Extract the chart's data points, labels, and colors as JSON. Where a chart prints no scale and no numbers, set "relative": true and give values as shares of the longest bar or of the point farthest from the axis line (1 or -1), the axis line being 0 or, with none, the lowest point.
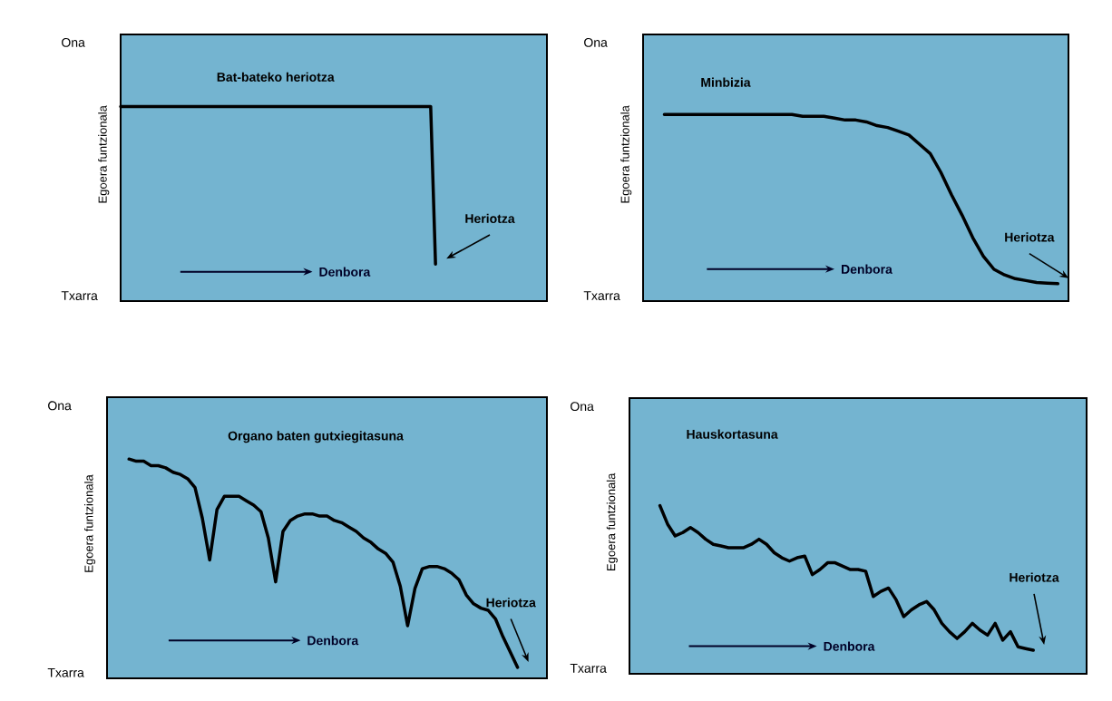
{
  "chart_data": [
    {
      "type": "line",
      "relative": true,
      "title": "Bat-bateko heriotza",
      "ylabel": "Egoera funtzionala",
      "categories": [
        null,
        null,
        null,
        null,
        null,
        null,
        null,
        null,
        null,
        null,
        null,
        null,
        null,
        null,
        null,
        null,
        null,
        null,
        null,
        null,
        null,
        null,
        null,
        null,
        null,
        null,
        null,
        null,
        null,
        null,
        null,
        null,
        null,
        null,
        null,
        null,
        null,
        null,
        null,
        null,
        null,
        null,
        null,
        null,
        null,
        null,
        null,
        null,
        null,
        null,
        null,
        null,
        null,
        null,
        null,
        null,
        null,
        null,
        null,
        null,
        null,
        null,
        null,
        null,
        null,
        null,
        null,
        null,
        null,
        null,
        null,
        null,
        null,
        null,
        null,
        null,
        null,
        null,
        null,
        null,
        null,
        null,
        null,
        null,
        null,
        null,
        null,
        null,
        null
      ],
      "series": [
        {
          "color": "#000000",
          "values": [
            1,
            1,
            1,
            1,
            1,
            1,
            1,
            1,
            1,
            1,
            1,
            1,
            1,
            1,
            1,
            1,
            1,
            1,
            1,
            1,
            1,
            1,
            1,
            1,
            1,
            1,
            1,
            1,
            1,
            1,
            1,
            1,
            1,
            1,
            1,
            1,
            1,
            1,
            1,
            1,
            1,
            1,
            1,
            1,
            1,
            1,
            1,
            1,
            1,
            1,
            1,
            1,
            1,
            1,
            1,
            1,
            1,
            1,
            1,
            1,
            1,
            1,
            1,
            1,
            1,
            0.19,
            null,
            null,
            null,
            null,
            null,
            null,
            null,
            null,
            null,
            null,
            null,
            null,
            null,
            null,
            null,
            null,
            null,
            null,
            null,
            null,
            null,
            null,
            null
          ]
        }
      ],
      "annotations": [
        "Denbora",
        "Heriotza",
        "Ona",
        "Txarra"
      ]
    },
    {
      "type": "line",
      "relative": true,
      "title": "Minbizia",
      "ylabel": "Egoera funtzionala",
      "categories": [
        null,
        null,
        null,
        null,
        null,
        null,
        null,
        null,
        null,
        null,
        null,
        null,
        null,
        null,
        null,
        null,
        null,
        null,
        null,
        null,
        null,
        null,
        null,
        null,
        null,
        null,
        null,
        null,
        null,
        null,
        null,
        null,
        null,
        null,
        null,
        null,
        null,
        null,
        null,
        null,
        null
      ],
      "series": [
        {
          "color": "#000000",
          "values": [
            null,
            null,
            1,
            1,
            1,
            1,
            1,
            1,
            1,
            1,
            1,
            1,
            1,
            1,
            1,
            0.99,
            0.99,
            0.99,
            0.98,
            0.97,
            0.97,
            0.96,
            0.94,
            0.93,
            0.91,
            0.89,
            0.84,
            0.79,
            0.69,
            0.57,
            0.46,
            0.34,
            0.24,
            0.17,
            0.14,
            0.12,
            0.11,
            0.1,
            0.096,
            0.093,
            null
          ]
        }
      ],
      "annotations": [
        "Denbora",
        "Heriotza",
        "Ona",
        "Txarra"
      ]
    },
    {
      "type": "line",
      "relative": true,
      "title": "Organo baten gutxiegitasuna",
      "ylabel": "Egoera funtzionala",
      "categories": [
        null,
        null,
        null,
        null,
        null,
        null,
        null,
        null,
        null,
        null,
        null,
        null,
        null,
        null,
        null,
        null,
        null,
        null,
        null,
        null,
        null,
        null,
        null,
        null,
        null,
        null,
        null,
        null,
        null,
        null,
        null,
        null,
        null,
        null,
        null,
        null,
        null,
        null,
        null,
        null,
        null,
        null,
        null,
        null,
        null,
        null,
        null,
        null,
        null,
        null,
        null,
        null,
        null,
        null,
        null,
        null,
        null,
        null,
        null,
        null,
        null
      ],
      "series": [
        {
          "color": "#000000",
          "values": [
            null,
            null,
            null,
            1,
            0.99,
            0.99,
            0.97,
            0.97,
            0.96,
            0.94,
            0.93,
            0.91,
            0.87,
            0.73,
            0.54,
            0.77,
            0.83,
            0.83,
            0.83,
            0.81,
            0.79,
            0.76,
            0.64,
            0.44,
            0.67,
            0.72,
            0.74,
            0.75,
            0.75,
            0.74,
            0.74,
            0.72,
            0.71,
            0.69,
            0.67,
            0.64,
            0.62,
            0.59,
            0.57,
            0.53,
            0.42,
            0.24,
            0.41,
            0.5,
            0.51,
            0.51,
            0.5,
            0.48,
            0.45,
            0.38,
            0.34,
            0.32,
            0.31,
            0.27,
            0.19,
            0.12,
            0.05,
            null,
            null,
            null,
            null
          ]
        }
      ],
      "annotations": [
        "Denbora",
        "Heriotza",
        "Ona",
        "Txarra"
      ]
    },
    {
      "type": "line",
      "relative": true,
      "title": "Hauskortasuna",
      "ylabel": "Egoera funtzionala",
      "categories": [
        null,
        null,
        null,
        null,
        null,
        null,
        null,
        null,
        null,
        null,
        null,
        null,
        null,
        null,
        null,
        null,
        null,
        null,
        null,
        null,
        null,
        null,
        null,
        null,
        null,
        null,
        null,
        null,
        null,
        null,
        null,
        null,
        null,
        null,
        null,
        null,
        null,
        null,
        null,
        null,
        null,
        null,
        null,
        null,
        null,
        null,
        null,
        null,
        null,
        null,
        null,
        null,
        null,
        null,
        null,
        null,
        null,
        null,
        null,
        null,
        null
      ],
      "series": [
        {
          "color": "#000000",
          "values": [
            null,
            null,
            null,
            null,
            1,
            0.89,
            0.82,
            0.84,
            0.87,
            0.84,
            0.8,
            0.77,
            0.76,
            0.75,
            0.75,
            0.75,
            0.77,
            0.8,
            0.77,
            0.72,
            0.69,
            0.67,
            0.69,
            0.7,
            0.59,
            0.62,
            0.66,
            0.66,
            0.64,
            0.62,
            0.62,
            0.61,
            0.46,
            0.49,
            0.51,
            0.44,
            0.34,
            0.38,
            0.41,
            0.43,
            0.38,
            0.3,
            0.25,
            0.21,
            0.25,
            0.3,
            0.26,
            0.23,
            0.3,
            0.2,
            0.25,
            0.16,
            0.15,
            0.14,
            null,
            null,
            null,
            null,
            null,
            null,
            null
          ]
        }
      ],
      "annotations": [
        "Denbora",
        "Heriotza",
        "Ona",
        "Txarra"
      ]
    }
  ]
}
